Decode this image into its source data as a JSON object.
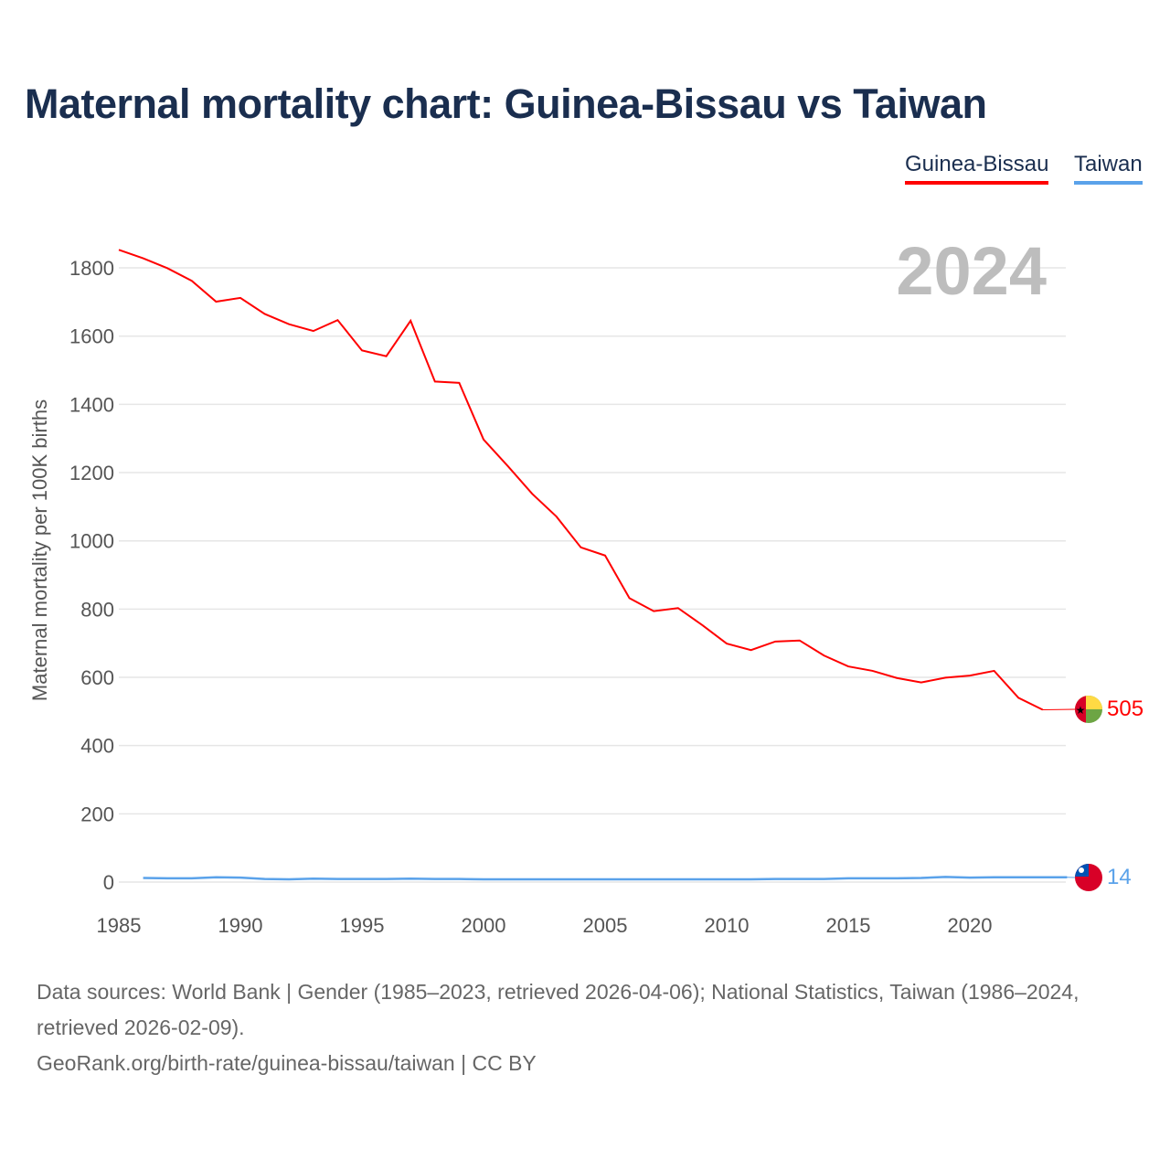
{
  "title": "Maternal mortality chart: Guinea-Bissau vs Taiwan",
  "legend": [
    "Guinea-Bissau",
    "Taiwan"
  ],
  "year_label": "2024",
  "end_labels": {
    "gb": "505",
    "tw": "14"
  },
  "footer": {
    "line1": "Data sources: World Bank | Gender (1985–2023, retrieved 2026-04-06); National Statistics, Taiwan (1986–2024, retrieved 2026-02-09).",
    "line2": "GeoRank.org/birth-rate/guinea-bissau/taiwan | CC BY"
  },
  "colors": {
    "gb": "#ff0000",
    "tw": "#5aa2ea",
    "grid": "#e6e6e6",
    "year": "#bdbdbd"
  },
  "chart_data": {
    "type": "line",
    "title": "Maternal mortality chart: Guinea-Bissau vs Taiwan",
    "xlabel": "",
    "ylabel": "Maternal mortality per 100K births",
    "xlim": [
      1985,
      2024
    ],
    "ylim": [
      0,
      1900
    ],
    "xticks": [
      "1985",
      "1990",
      "1995",
      "2000",
      "2005",
      "2010",
      "2015",
      "2020"
    ],
    "yticks": [
      "0",
      "200",
      "400",
      "600",
      "800",
      "1000",
      "1200",
      "1400",
      "1600",
      "1800"
    ],
    "grid": true,
    "legend_placement": "top-right",
    "series": [
      {
        "name": "Guinea-Bissau",
        "x_start": 1985,
        "values": [
          1853,
          1828,
          1799,
          1762,
          1701,
          1712,
          1665,
          1635,
          1615,
          1647,
          1558,
          1541,
          1645,
          1467,
          1463,
          1297,
          1219,
          1138,
          1071,
          981,
          957,
          832,
          794,
          803,
          753,
          699,
          680,
          705,
          708,
          664,
          632,
          619,
          598,
          585,
          599,
          605,
          619,
          540,
          505
        ]
      },
      {
        "name": "Taiwan",
        "x_start": 1986,
        "values": [
          12,
          11,
          11,
          14,
          13,
          9,
          8,
          10,
          9,
          9,
          9,
          10,
          9,
          9,
          8,
          8,
          8,
          8,
          8,
          8,
          8,
          8,
          8,
          8,
          8,
          8,
          9,
          9,
          9,
          11,
          11,
          11,
          12,
          15,
          13,
          14,
          14,
          14,
          14
        ]
      }
    ]
  }
}
